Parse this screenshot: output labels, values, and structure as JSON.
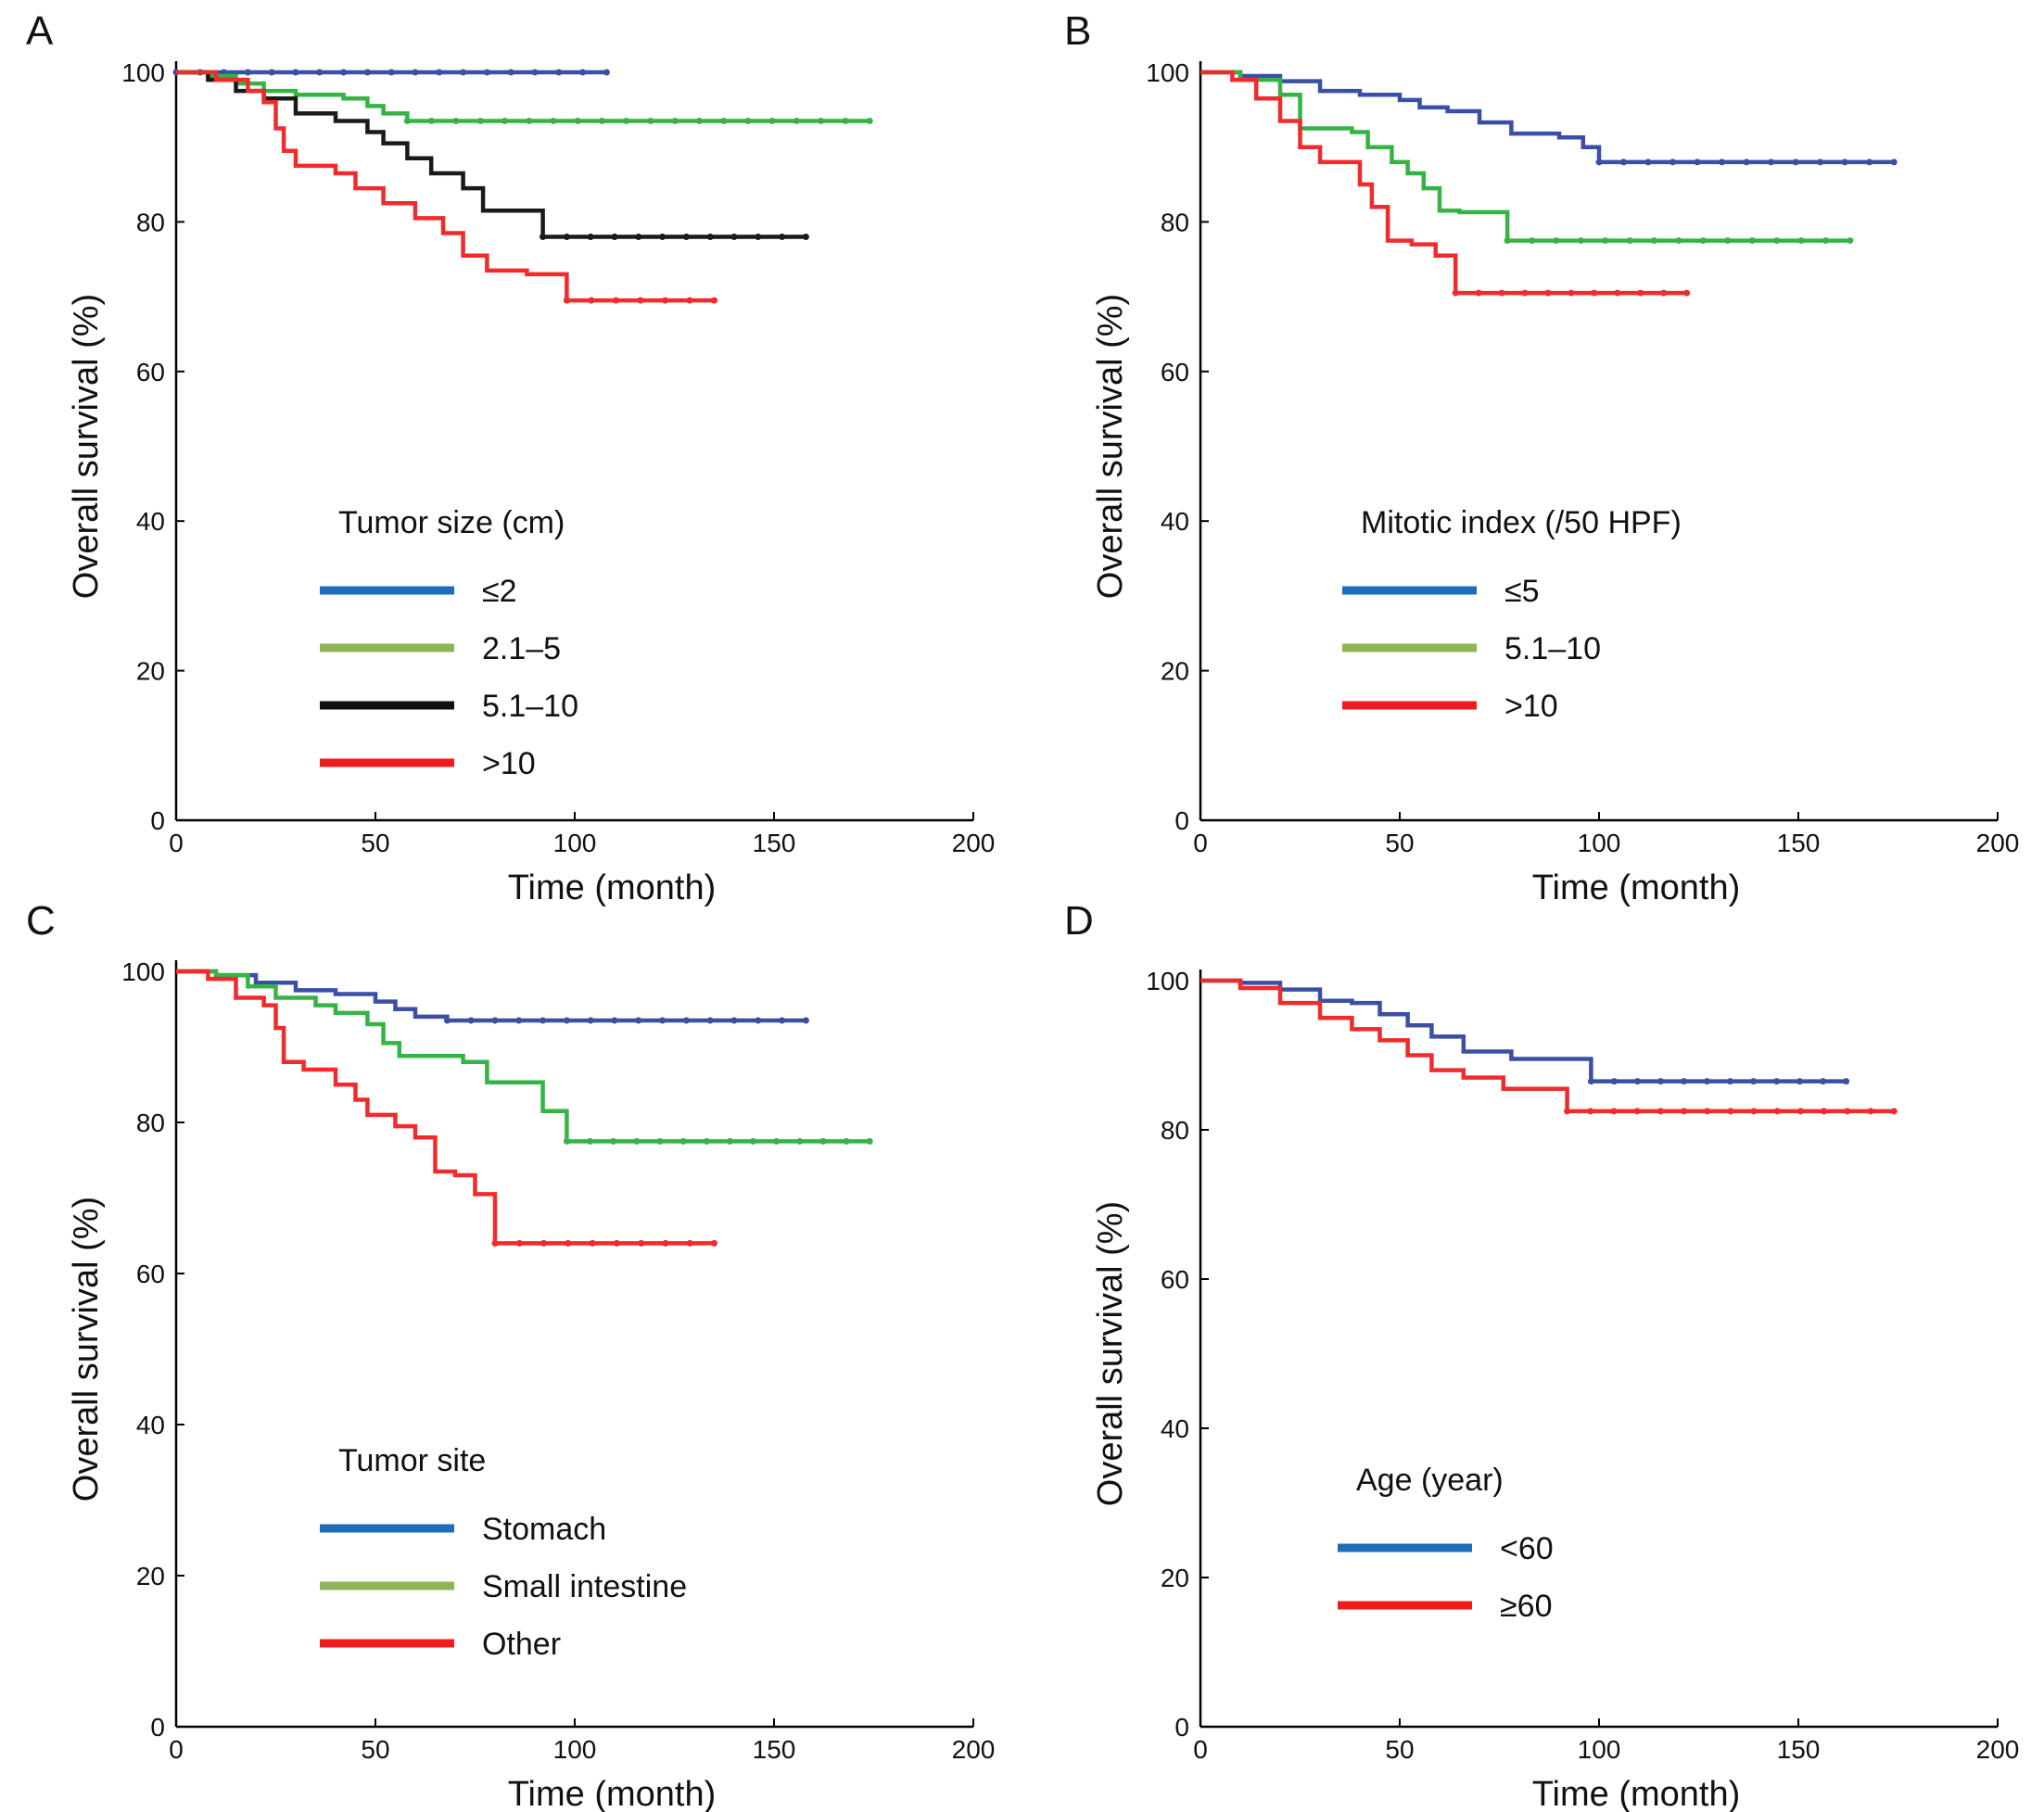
{
  "figure": {
    "colors": {
      "blue": "#3a4fa5",
      "green": "#35b445",
      "black": "#1a1a1a",
      "red": "#ef2b2b",
      "legend_blue": "#1f6db8",
      "legend_green": "#8db455",
      "legend_black": "#111111",
      "legend_red": "#ee1c1c"
    }
  },
  "chart_data": [
    {
      "panel": "A",
      "type": "line",
      "xlabel": "Time (month)",
      "ylabel": "Overall survival (%)",
      "xlim": [
        0,
        200
      ],
      "ylim": [
        0,
        100
      ],
      "xticks": [
        0,
        50,
        100,
        150,
        200
      ],
      "yticks": [
        0,
        20,
        40,
        60,
        80,
        100
      ],
      "legend_title": "Tumor size (cm)",
      "series": [
        {
          "name": "≤2",
          "color": "blue",
          "legend_color": "legend_blue",
          "x": [
            0,
            108
          ],
          "y": [
            100,
            100
          ]
        },
        {
          "name": "2.1–5",
          "color": "green",
          "legend_color": "legend_green",
          "x": [
            0,
            8,
            15,
            22,
            30,
            42,
            48,
            52,
            58,
            174
          ],
          "y": [
            100,
            99.5,
            98.5,
            97.5,
            97,
            96.5,
            95.5,
            94.5,
            93.5,
            93.5
          ]
        },
        {
          "name": "5.1–10",
          "color": "black",
          "legend_color": "legend_black",
          "x": [
            0,
            8,
            15,
            22,
            30,
            40,
            48,
            52,
            58,
            64,
            72,
            77,
            92,
            158
          ],
          "y": [
            100,
            99,
            97.5,
            96.5,
            94.5,
            93.5,
            92,
            90.5,
            88.5,
            86.5,
            84.5,
            81.5,
            78,
            78
          ]
        },
        {
          "name": ">10",
          "color": "red",
          "legend_color": "legend_red",
          "x": [
            0,
            10,
            18,
            22,
            25,
            27,
            30,
            40,
            45,
            52,
            60,
            67,
            72,
            78,
            88,
            98,
            135
          ],
          "y": [
            100,
            99,
            97.5,
            96,
            92.5,
            89.5,
            87.5,
            86.5,
            84.5,
            82.5,
            80.5,
            78.5,
            75.5,
            73.5,
            73,
            69.5,
            69.5
          ]
        }
      ]
    },
    {
      "panel": "B",
      "type": "line",
      "xlabel": "Time (month)",
      "ylabel": "Overall survival (%)",
      "xlim": [
        0,
        200
      ],
      "ylim": [
        0,
        100
      ],
      "xticks": [
        0,
        50,
        100,
        150,
        200
      ],
      "yticks": [
        0,
        20,
        40,
        60,
        80,
        100
      ],
      "legend_title": "Mitotic index (/50 HPF)",
      "series": [
        {
          "name": "≤5",
          "color": "blue",
          "legend_color": "legend_blue",
          "x": [
            0,
            10,
            20,
            30,
            40,
            50,
            55,
            62,
            70,
            78,
            90,
            96,
            100,
            174
          ],
          "y": [
            100,
            99.5,
            98.8,
            97.5,
            97,
            96.3,
            95.3,
            94.8,
            93.3,
            91.8,
            91.3,
            90,
            88,
            88
          ]
        },
        {
          "name": "5.1–10",
          "color": "green",
          "legend_color": "legend_green",
          "x": [
            0,
            10,
            20,
            25,
            38,
            42,
            48,
            52,
            56,
            60,
            65,
            77,
            163
          ],
          "y": [
            100,
            99,
            97,
            92.5,
            92,
            90,
            88,
            86.5,
            84.5,
            81.5,
            81.3,
            77.5,
            77.5
          ]
        },
        {
          "name": ">10",
          "color": "red",
          "legend_color": "legend_red",
          "x": [
            0,
            8,
            14,
            20,
            25,
            30,
            40,
            43,
            47,
            53,
            59,
            64,
            122
          ],
          "y": [
            100,
            99,
            96.5,
            93.5,
            90,
            88,
            85,
            82,
            77.5,
            77,
            75.5,
            70.5,
            70.5
          ]
        }
      ]
    },
    {
      "panel": "C",
      "type": "line",
      "xlabel": "Time (month)",
      "ylabel": "Overall survival (%)",
      "xlim": [
        0,
        200
      ],
      "ylim": [
        0,
        100
      ],
      "xticks": [
        0,
        50,
        100,
        150,
        200
      ],
      "yticks": [
        0,
        20,
        40,
        60,
        80,
        100
      ],
      "legend_title": "Tumor site",
      "series": [
        {
          "name": "Stomach",
          "color": "blue",
          "legend_color": "legend_blue",
          "x": [
            0,
            10,
            20,
            30,
            40,
            50,
            55,
            60,
            68,
            158
          ],
          "y": [
            100,
            99.5,
            98.5,
            97.5,
            97,
            96,
            95,
            94,
            93.5,
            93.5
          ]
        },
        {
          "name": "Small intestine",
          "color": "green",
          "legend_color": "legend_green",
          "x": [
            0,
            10,
            18,
            25,
            35,
            40,
            48,
            52,
            56,
            72,
            78,
            92,
            98,
            174
          ],
          "y": [
            100,
            99.5,
            98,
            96.5,
            95.5,
            94.5,
            93,
            90.5,
            88.8,
            88,
            85.3,
            81.5,
            77.5,
            77.5
          ]
        },
        {
          "name": "Other",
          "color": "red",
          "legend_color": "legend_red",
          "x": [
            0,
            8,
            15,
            22,
            25,
            27,
            32,
            40,
            45,
            48,
            55,
            60,
            65,
            70,
            75,
            80,
            135
          ],
          "y": [
            100,
            99,
            96.5,
            95.5,
            92.5,
            88,
            87,
            85,
            83,
            81,
            79.5,
            78,
            73.5,
            73,
            70.5,
            64,
            64
          ]
        }
      ]
    },
    {
      "panel": "D",
      "type": "line",
      "xlabel": "Time (month)",
      "ylabel": "Overall survival (%)",
      "xlim": [
        0,
        200
      ],
      "ylim": [
        0,
        100
      ],
      "xticks": [
        0,
        50,
        100,
        150,
        200
      ],
      "yticks": [
        0,
        20,
        40,
        60,
        80,
        100
      ],
      "legend_title": "Age (year)",
      "series": [
        {
          "name": "<60",
          "color": "blue",
          "legend_color": "legend_blue",
          "x": [
            0,
            10,
            20,
            30,
            38,
            45,
            52,
            58,
            66,
            78,
            98,
            162
          ],
          "y": [
            100,
            99.7,
            98.8,
            97.3,
            97,
            95.5,
            94,
            92.5,
            90.5,
            89.5,
            86.5,
            86.5
          ]
        },
        {
          "name": "≥60",
          "color": "red",
          "legend_color": "legend_red",
          "x": [
            0,
            10,
            20,
            30,
            38,
            45,
            52,
            58,
            66,
            76,
            92,
            174
          ],
          "y": [
            100,
            99,
            97,
            95,
            93.5,
            92,
            90,
            88,
            87,
            85.5,
            82.5,
            82.5
          ]
        }
      ]
    }
  ]
}
